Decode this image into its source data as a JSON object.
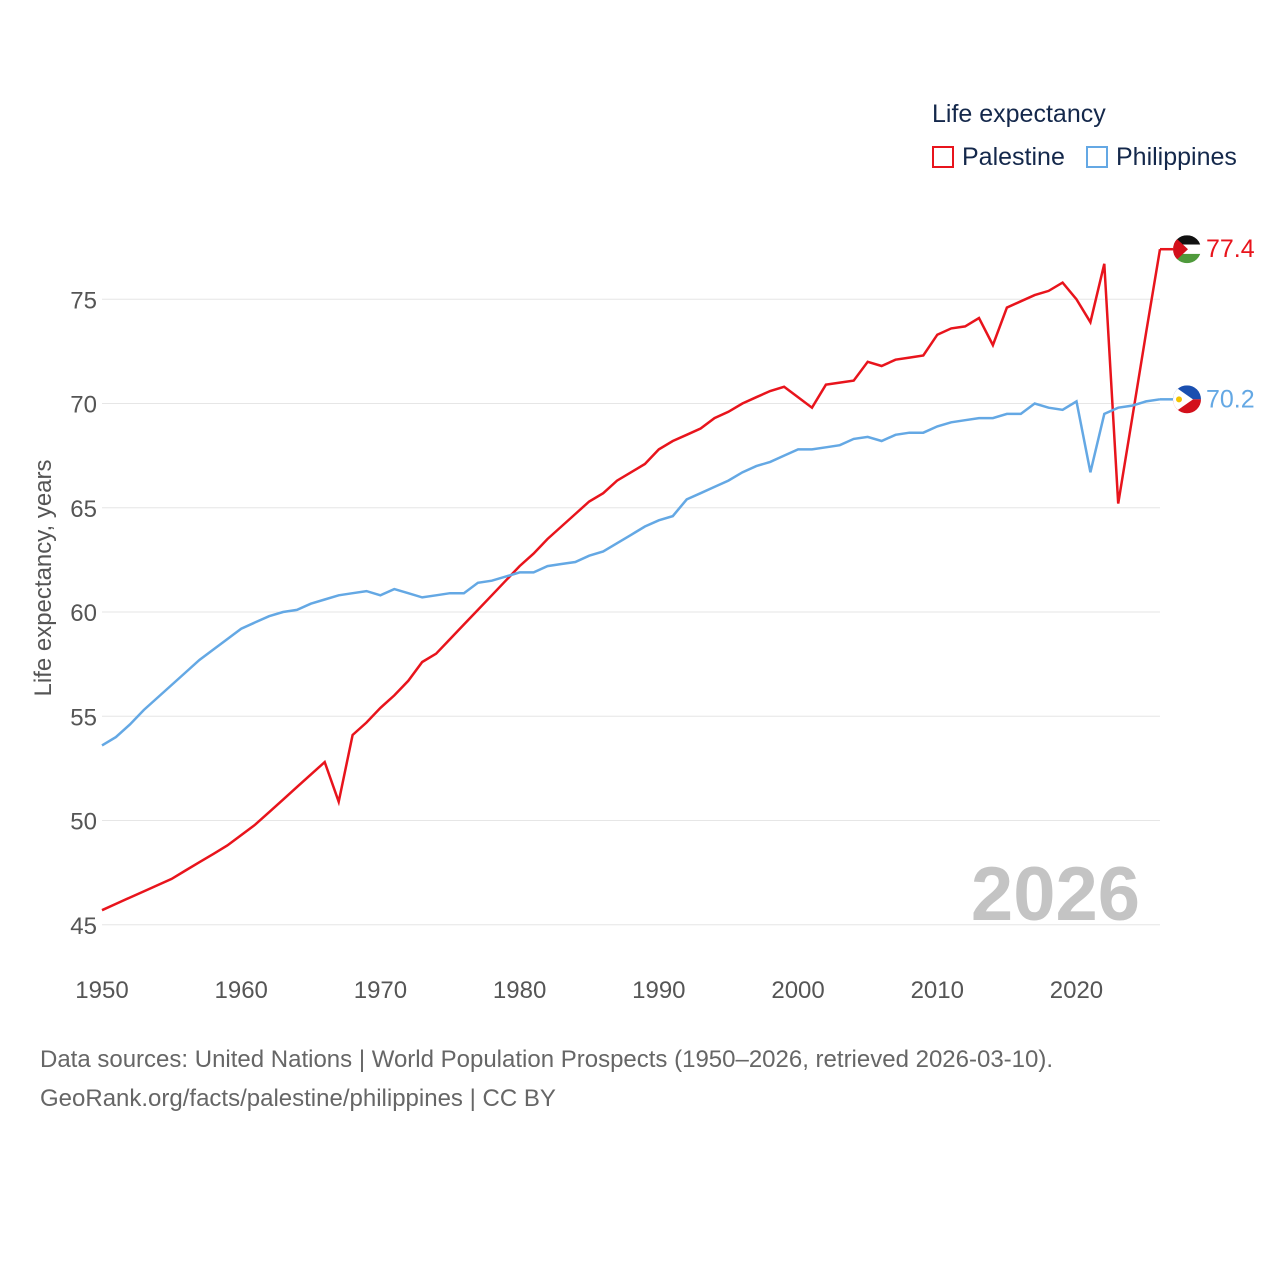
{
  "legend": {
    "title": "Life expectancy",
    "items": [
      {
        "label": "Palestine",
        "color": "#e8141c"
      },
      {
        "label": "Philippines",
        "color": "#64a8e4"
      }
    ]
  },
  "chart_data": {
    "type": "line",
    "title": "Life expectancy",
    "xlabel": "",
    "ylabel": "Life expectancy, years",
    "xlim": [
      1950,
      2026
    ],
    "ylim": [
      45,
      78
    ],
    "x_ticks": [
      1950,
      1960,
      1970,
      1980,
      1990,
      2000,
      2010,
      2020
    ],
    "y_ticks": [
      45,
      50,
      55,
      60,
      65,
      70,
      75
    ],
    "grid": true,
    "year_label": "2026",
    "x": [
      1950,
      1951,
      1952,
      1953,
      1954,
      1955,
      1956,
      1957,
      1958,
      1959,
      1960,
      1961,
      1962,
      1963,
      1964,
      1965,
      1966,
      1967,
      1968,
      1969,
      1970,
      1971,
      1972,
      1973,
      1974,
      1975,
      1976,
      1977,
      1978,
      1979,
      1980,
      1981,
      1982,
      1983,
      1984,
      1985,
      1986,
      1987,
      1988,
      1989,
      1990,
      1991,
      1992,
      1993,
      1994,
      1995,
      1996,
      1997,
      1998,
      1999,
      2000,
      2001,
      2002,
      2003,
      2004,
      2005,
      2006,
      2007,
      2008,
      2009,
      2010,
      2011,
      2012,
      2013,
      2014,
      2015,
      2016,
      2017,
      2018,
      2019,
      2020,
      2021,
      2022,
      2023,
      2024,
      2025,
      2026
    ],
    "series": [
      {
        "name": "Palestine",
        "color": "#e8141c",
        "end_label": "77.4",
        "values": [
          45.7,
          46.0,
          46.3,
          46.6,
          46.9,
          47.2,
          47.6,
          48.0,
          48.4,
          48.8,
          49.3,
          49.8,
          50.4,
          51.0,
          51.6,
          52.2,
          52.8,
          50.9,
          54.1,
          54.7,
          55.4,
          56.0,
          56.7,
          57.6,
          58.0,
          58.7,
          59.4,
          60.1,
          60.8,
          61.5,
          62.2,
          62.8,
          63.5,
          64.1,
          64.7,
          65.3,
          65.7,
          66.3,
          66.7,
          67.1,
          67.8,
          68.2,
          68.5,
          68.8,
          69.3,
          69.6,
          70.0,
          70.3,
          70.6,
          70.8,
          70.3,
          69.8,
          70.9,
          71.0,
          71.1,
          72.0,
          71.8,
          72.1,
          72.2,
          72.3,
          73.3,
          73.6,
          73.7,
          74.1,
          72.8,
          74.6,
          74.9,
          75.2,
          75.4,
          75.8,
          75.0,
          73.9,
          76.7,
          65.2,
          69.3,
          73.4,
          77.4
        ]
      },
      {
        "name": "Philippines",
        "color": "#64a8e4",
        "end_label": "70.2",
        "values": [
          53.6,
          54.0,
          54.6,
          55.3,
          55.9,
          56.5,
          57.1,
          57.7,
          58.2,
          58.7,
          59.2,
          59.5,
          59.8,
          60.0,
          60.1,
          60.4,
          60.6,
          60.8,
          60.9,
          61.0,
          60.8,
          61.1,
          60.9,
          60.7,
          60.8,
          60.9,
          60.9,
          61.4,
          61.5,
          61.7,
          61.9,
          61.9,
          62.2,
          62.3,
          62.4,
          62.7,
          62.9,
          63.3,
          63.7,
          64.1,
          64.4,
          64.6,
          65.4,
          65.7,
          66.0,
          66.3,
          66.7,
          67.0,
          67.2,
          67.5,
          67.8,
          67.8,
          67.9,
          68.0,
          68.3,
          68.4,
          68.2,
          68.5,
          68.6,
          68.6,
          68.9,
          69.1,
          69.2,
          69.3,
          69.3,
          69.5,
          69.5,
          70.0,
          69.8,
          69.7,
          70.1,
          66.7,
          69.5,
          69.8,
          69.9,
          70.1,
          70.2
        ]
      }
    ]
  },
  "sources": {
    "line1": "Data sources: United Nations | World Population Prospects (1950–2026, retrieved 2026-03-10).",
    "line2": "GeoRank.org/facts/palestine/philippines | CC BY"
  }
}
